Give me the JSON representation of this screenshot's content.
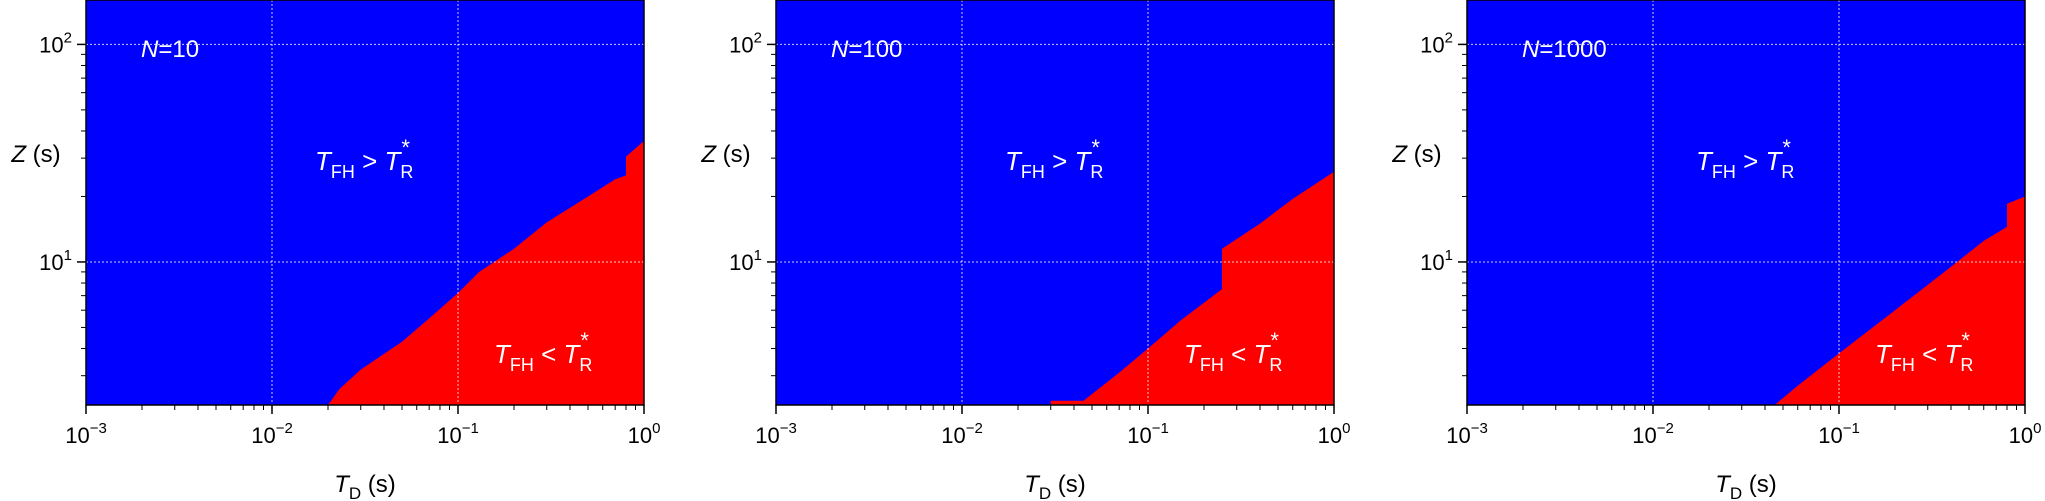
{
  "chart_data": [
    {
      "type": "heatmap",
      "panel_label": "N=10",
      "panel_label_var": "N",
      "panel_label_value": "=10",
      "xlabel_var": "T",
      "xlabel_sub": "D",
      "xlabel_unit": " (s)",
      "ylabel_var": "Z",
      "ylabel_unit": " (s)",
      "x_scale": "log",
      "y_scale": "log",
      "xlim": [
        0.001,
        1
      ],
      "ylim": [
        2.2,
        160
      ],
      "x_ticks": [
        0.001,
        0.01,
        0.1,
        1
      ],
      "y_ticks": [
        10,
        100
      ],
      "grid": true,
      "region_colors": {
        "above": "#0000ff",
        "below": "#ff0000"
      },
      "region_labels": {
        "above": "T_FH > T_R*",
        "below": "T_FH < T_R*"
      },
      "boundary": [
        [
          0.02,
          2.2
        ],
        [
          0.023,
          2.6
        ],
        [
          0.03,
          3.2
        ],
        [
          0.05,
          4.3
        ],
        [
          0.07,
          5.5
        ],
        [
          0.1,
          7.2
        ],
        [
          0.13,
          9.0
        ],
        [
          0.2,
          11.5
        ],
        [
          0.3,
          15.2
        ],
        [
          0.5,
          20
        ],
        [
          0.7,
          24
        ],
        [
          0.8,
          25
        ],
        [
          0.8,
          30.5
        ],
        [
          1.0,
          36
        ]
      ]
    },
    {
      "type": "heatmap",
      "panel_label": "N=100",
      "panel_label_var": "N",
      "panel_label_value": "=100",
      "xlabel_var": "T",
      "xlabel_sub": "D",
      "xlabel_unit": " (s)",
      "ylabel_var": "Z",
      "ylabel_unit": " (s)",
      "x_scale": "log",
      "y_scale": "log",
      "xlim": [
        0.001,
        1
      ],
      "ylim": [
        2.2,
        160
      ],
      "x_ticks": [
        0.001,
        0.01,
        0.1,
        1
      ],
      "y_ticks": [
        10,
        100
      ],
      "grid": true,
      "region_colors": {
        "above": "#0000ff",
        "below": "#ff0000"
      },
      "region_labels": {
        "above": "T_FH > T_R*",
        "below": "T_FH < T_R*"
      },
      "boundary": [
        [
          0.03,
          2.2
        ],
        [
          0.03,
          2.3
        ],
        [
          0.045,
          2.3
        ],
        [
          0.07,
          3.1
        ],
        [
          0.1,
          4.0
        ],
        [
          0.15,
          5.4
        ],
        [
          0.25,
          7.5
        ],
        [
          0.25,
          11.5
        ],
        [
          0.4,
          15
        ],
        [
          0.6,
          19.5
        ],
        [
          1.0,
          26
        ]
      ]
    },
    {
      "type": "heatmap",
      "panel_label": "N=1000",
      "panel_label_var": "N",
      "panel_label_value": "=1000",
      "xlabel_var": "T",
      "xlabel_sub": "D",
      "xlabel_unit": " (s)",
      "ylabel_var": "Z",
      "ylabel_unit": " (s)",
      "x_scale": "log",
      "y_scale": "log",
      "xlim": [
        0.001,
        1
      ],
      "ylim": [
        2.2,
        160
      ],
      "x_ticks": [
        0.001,
        0.01,
        0.1,
        1
      ],
      "y_ticks": [
        10,
        100
      ],
      "grid": true,
      "region_colors": {
        "above": "#0000ff",
        "below": "#ff0000"
      },
      "region_labels": {
        "above": "T_FH > T_R*",
        "below": "T_FH < T_R*"
      },
      "boundary": [
        [
          0.045,
          2.2
        ],
        [
          0.06,
          2.7
        ],
        [
          0.1,
          3.8
        ],
        [
          0.2,
          6.0
        ],
        [
          0.4,
          9.5
        ],
        [
          0.6,
          12.5
        ],
        [
          0.8,
          14.5
        ],
        [
          0.8,
          18.5
        ],
        [
          1.0,
          20
        ]
      ]
    }
  ]
}
